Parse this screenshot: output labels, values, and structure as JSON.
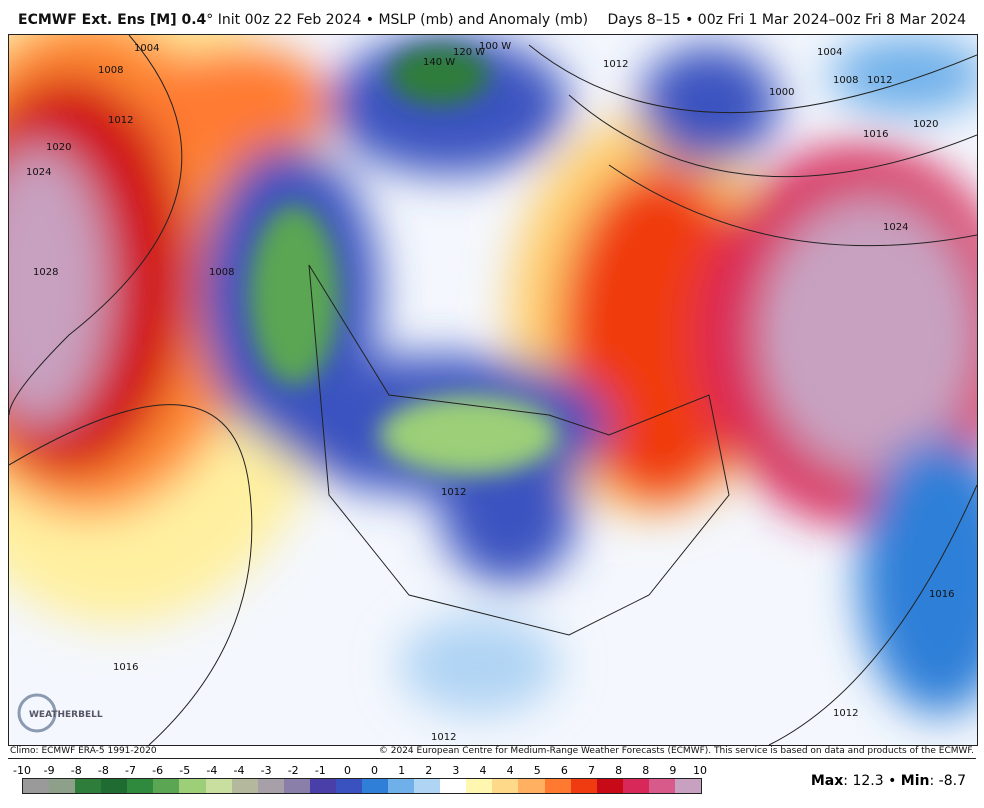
{
  "header": {
    "model": "ECMWF Ext. Ens [M] 0.4",
    "degree": "°",
    "init": " Init 00z 22 Feb 2024 • MSLP (mb) and Anomaly (mb)",
    "range": "Days 8–15 • 00z Fri 1 Mar 2024–00z Fri 8 Mar 2024"
  },
  "map": {
    "contour_labels": [
      "1004",
      "1008",
      "1012",
      "1020",
      "1024",
      "1028",
      "1008",
      "1012",
      "1016",
      "1012",
      "140 W",
      "120 W",
      "100 W",
      "1012",
      "1004",
      "1000",
      "1008",
      "1012",
      "1016",
      "1020",
      "1024",
      "1016",
      "1012"
    ],
    "logo": "WeatherBELL"
  },
  "footer": {
    "climo": "Climo: ECMWF ERA-5 1991-2020",
    "copyright": "© 2024 European Centre for Medium-Range Weather Forecasts (ECMWF). This service is based on data and products of the ECMWF.",
    "max_label": "Max",
    "max_value": "12.3",
    "min_label": "Min",
    "min_value": "-8.7"
  },
  "colorbar": {
    "ticks": [
      "-10",
      "-9",
      "-8",
      "-8",
      "-7",
      "-6",
      "-5",
      "-4",
      "-4",
      "-3",
      "-2",
      "-1",
      "0",
      "0",
      "1",
      "2",
      "3",
      "4",
      "4",
      "5",
      "6",
      "7",
      "8",
      "8",
      "9",
      "10"
    ],
    "colors": [
      "#9a9a9a",
      "#8fa08a",
      "#2e7d3a",
      "#1f6b32",
      "#2f8a3e",
      "#5aa652",
      "#9ccf78",
      "#c8dfa0",
      "#b4b89c",
      "#a8a0a8",
      "#8a7fa8",
      "#4a3fa8",
      "#3a52c0",
      "#2f7fd8",
      "#6fb0ea",
      "#b0d4f4",
      "#ffffff",
      "#fff6b0",
      "#ffd98a",
      "#ffb060",
      "#ff7a30",
      "#f03a10",
      "#c80a18",
      "#d8285a",
      "#d85a8a",
      "#c8a0c0"
    ]
  }
}
